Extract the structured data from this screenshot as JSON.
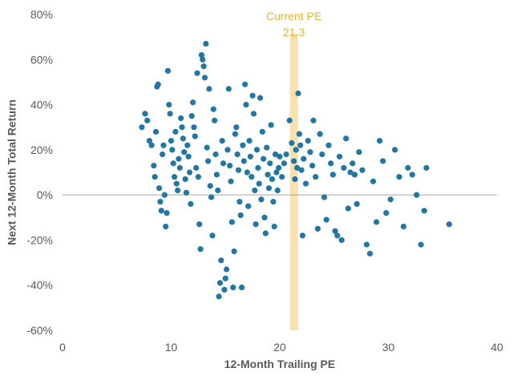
{
  "chart_data": {
    "type": "scatter",
    "xlabel": "12-Month Trailing PE",
    "ylabel": "Next 12-Month Total Return",
    "xlim": [
      0,
      40
    ],
    "ylim": [
      -60,
      80
    ],
    "x_ticks": [
      "0",
      "10",
      "20",
      "30",
      "40"
    ],
    "y_ticks": [
      "80%",
      "60%",
      "40%",
      "20%",
      "0%",
      "-20%",
      "-40%",
      "-60%"
    ],
    "grid": false,
    "annotation": {
      "label_line1": "Current PE",
      "label_line2": "21.3",
      "value": 21.3,
      "color": "#f0b232"
    },
    "point_color": "#1f77a8",
    "zero_line_color": "#a6a6a6",
    "series": [
      {
        "points": [
          [
            7.3,
            30
          ],
          [
            7.6,
            36
          ],
          [
            7.8,
            33
          ],
          [
            8.0,
            24
          ],
          [
            8.2,
            22
          ],
          [
            8.4,
            13
          ],
          [
            8.5,
            8
          ],
          [
            8.6,
            28
          ],
          [
            8.7,
            48
          ],
          [
            8.8,
            49
          ],
          [
            8.9,
            3
          ],
          [
            9.0,
            -3
          ],
          [
            9.1,
            -7
          ],
          [
            9.2,
            18
          ],
          [
            9.3,
            22
          ],
          [
            9.4,
            0
          ],
          [
            9.5,
            -14
          ],
          [
            9.6,
            -8
          ],
          [
            9.7,
            55
          ],
          [
            9.8,
            40
          ],
          [
            9.9,
            36
          ],
          [
            10.0,
            24
          ],
          [
            10.1,
            20
          ],
          [
            10.2,
            14
          ],
          [
            10.3,
            8
          ],
          [
            10.4,
            28
          ],
          [
            10.5,
            5
          ],
          [
            10.6,
            2
          ],
          [
            10.7,
            16
          ],
          [
            10.8,
            12
          ],
          [
            10.9,
            34
          ],
          [
            11.0,
            30
          ],
          [
            11.1,
            25
          ],
          [
            11.2,
            19
          ],
          [
            11.3,
            7
          ],
          [
            11.4,
            1
          ],
          [
            11.5,
            22
          ],
          [
            11.6,
            17
          ],
          [
            11.7,
            10
          ],
          [
            11.8,
            -4
          ],
          [
            11.9,
            35
          ],
          [
            12.0,
            41
          ],
          [
            12.1,
            30
          ],
          [
            12.2,
            26
          ],
          [
            12.3,
            12
          ],
          [
            12.4,
            54
          ],
          [
            12.5,
            8
          ],
          [
            12.6,
            -13
          ],
          [
            12.7,
            -24
          ],
          [
            12.8,
            62
          ],
          [
            12.9,
            60
          ],
          [
            13.0,
            57
          ],
          [
            13.1,
            52
          ],
          [
            13.2,
            67
          ],
          [
            13.3,
            21
          ],
          [
            13.4,
            15
          ],
          [
            13.5,
            47
          ],
          [
            13.6,
            4
          ],
          [
            13.7,
            -1
          ],
          [
            13.8,
            -18
          ],
          [
            13.9,
            38
          ],
          [
            14.0,
            33
          ],
          [
            14.1,
            18
          ],
          [
            14.2,
            9
          ],
          [
            14.3,
            2
          ],
          [
            14.4,
            -45
          ],
          [
            14.5,
            -39
          ],
          [
            14.6,
            -29
          ],
          [
            14.7,
            24
          ],
          [
            14.8,
            14
          ],
          [
            14.9,
            -42
          ],
          [
            15.0,
            -37
          ],
          [
            15.1,
            -33
          ],
          [
            15.2,
            20
          ],
          [
            15.3,
            47
          ],
          [
            15.4,
            13
          ],
          [
            15.5,
            6
          ],
          [
            15.6,
            -12
          ],
          [
            15.7,
            -41
          ],
          [
            15.8,
            -25
          ],
          [
            15.9,
            27
          ],
          [
            16.0,
            30
          ],
          [
            16.1,
            18
          ],
          [
            16.2,
            11
          ],
          [
            16.3,
            -3
          ],
          [
            16.4,
            -9
          ],
          [
            16.5,
            -41
          ],
          [
            16.6,
            22
          ],
          [
            16.7,
            15
          ],
          [
            16.8,
            49
          ],
          [
            16.9,
            40
          ],
          [
            17.0,
            10
          ],
          [
            17.1,
            -5
          ],
          [
            17.2,
            24
          ],
          [
            17.3,
            17
          ],
          [
            17.4,
            8
          ],
          [
            17.5,
            44
          ],
          [
            17.6,
            36
          ],
          [
            17.7,
            2
          ],
          [
            17.8,
            -13
          ],
          [
            17.9,
            20
          ],
          [
            18.0,
            12
          ],
          [
            18.1,
            5
          ],
          [
            18.2,
            43
          ],
          [
            18.3,
            -2
          ],
          [
            18.4,
            28
          ],
          [
            18.5,
            16
          ],
          [
            18.6,
            -10
          ],
          [
            18.7,
            -17
          ],
          [
            18.8,
            21
          ],
          [
            18.9,
            9
          ],
          [
            19.0,
            3
          ],
          [
            19.1,
            14
          ],
          [
            19.2,
            31
          ],
          [
            19.3,
            7
          ],
          [
            19.4,
            -3
          ],
          [
            19.5,
            -14
          ],
          [
            19.6,
            18
          ],
          [
            19.7,
            10
          ],
          [
            19.8,
            2
          ],
          [
            19.9,
            12
          ],
          [
            20.0,
            17
          ],
          [
            20.2,
            8
          ],
          [
            20.4,
            14
          ],
          [
            20.6,
            18
          ],
          [
            20.9,
            33
          ],
          [
            21.1,
            23
          ],
          [
            21.3,
            15
          ],
          [
            21.4,
            7
          ],
          [
            21.5,
            20
          ],
          [
            21.6,
            12
          ],
          [
            21.7,
            45
          ],
          [
            21.8,
            27
          ],
          [
            21.9,
            22
          ],
          [
            22.0,
            11
          ],
          [
            22.1,
            -18
          ],
          [
            22.2,
            16
          ],
          [
            22.4,
            5
          ],
          [
            22.6,
            24
          ],
          [
            22.8,
            19
          ],
          [
            23.0,
            13
          ],
          [
            23.1,
            33
          ],
          [
            23.3,
            8
          ],
          [
            23.5,
            -15
          ],
          [
            23.7,
            27
          ],
          [
            23.9,
            18
          ],
          [
            24.1,
            -1
          ],
          [
            24.3,
            -11
          ],
          [
            24.5,
            22
          ],
          [
            24.7,
            14
          ],
          [
            24.9,
            9
          ],
          [
            25.1,
            -16
          ],
          [
            25.3,
            -18
          ],
          [
            25.5,
            17
          ],
          [
            25.7,
            -20
          ],
          [
            25.9,
            12
          ],
          [
            26.1,
            25
          ],
          [
            26.3,
            -6
          ],
          [
            26.5,
            10
          ],
          [
            26.7,
            14
          ],
          [
            26.9,
            9
          ],
          [
            27.1,
            -4
          ],
          [
            27.3,
            19
          ],
          [
            27.6,
            11
          ],
          [
            28.0,
            -22
          ],
          [
            28.3,
            -26
          ],
          [
            28.6,
            6
          ],
          [
            28.9,
            -12
          ],
          [
            29.2,
            24
          ],
          [
            29.5,
            15
          ],
          [
            29.8,
            -8
          ],
          [
            30.2,
            -2
          ],
          [
            30.6,
            20
          ],
          [
            31.0,
            8
          ],
          [
            31.4,
            -14
          ],
          [
            31.8,
            12
          ],
          [
            32.2,
            9
          ],
          [
            32.6,
            0
          ],
          [
            33.0,
            -22
          ],
          [
            33.3,
            -7
          ],
          [
            33.5,
            12
          ],
          [
            35.6,
            -13
          ]
        ]
      }
    ]
  }
}
